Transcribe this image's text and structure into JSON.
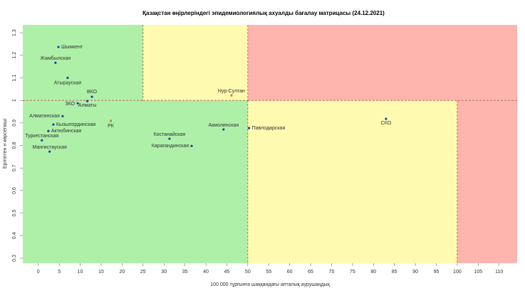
{
  "chart_data": {
    "type": "scatter",
    "title": "Қазақстан өңірлеріндегі эпидемиологиялық ахуалды бағалау матрицасы  (24.12.2021)",
    "x_label": "100 000 тұрғынға шаққандағы апталық аурушаңдық",
    "y_label": "Ерітіптен н көрсеткіші",
    "labels": [
      "Шымкент",
      "Жамбылская",
      "Атырауская",
      "ВКО",
      "ЗКО",
      "Алматы",
      "Алматинская",
      "РК",
      "Кызылординская",
      "Актюбинская",
      "Туркестанская",
      "Мангистауская",
      "Нур-Султан",
      "Акмолинская",
      "Павлодарская",
      "Костанайская",
      "Карагандинская",
      "СКО"
    ],
    "x": [
      4.8,
      4.1,
      7.0,
      12.8,
      9.4,
      11.7,
      5.8,
      17.3,
      3.6,
      2.4,
      0.85,
      2.7,
      46.1,
      44.2,
      50.3,
      31.3,
      36.6,
      83.0
    ],
    "values": [
      1.237,
      1.167,
      1.1,
      1.016,
      0.987,
      0.997,
      0.93,
      0.909,
      0.893,
      0.864,
      0.823,
      0.773,
      1.022,
      0.871,
      0.877,
      0.83,
      0.798,
      0.918
    ],
    "colors": [
      "#1f3fa0",
      "#1f3fa0",
      "#1f3fa0",
      "#1f3fa0",
      "#1f3fa0",
      "#1f3fa0",
      "#1f3fa0",
      "#d0802a",
      "#1f3fa0",
      "#1f3fa0",
      "#1f3fa0",
      "#1f3fa0",
      "#d0802a",
      "#1f3fa0",
      "#1f3fa0",
      "#1f3fa0",
      "#1f3fa0",
      "#1f3fa0"
    ],
    "zones": [
      {
        "x": [
          null,
          25
        ],
        "y": [
          1,
          null
        ],
        "color": "#aef0a8"
      },
      {
        "x": [
          25,
          50
        ],
        "y": [
          1,
          null
        ],
        "color": "#fefaaf"
      },
      {
        "x": [
          50,
          null
        ],
        "y": [
          1,
          null
        ],
        "color": "#fdb5ae"
      },
      {
        "x": [
          null,
          50
        ],
        "y": [
          null,
          1
        ],
        "color": "#aef0a8"
      },
      {
        "x": [
          50,
          100
        ],
        "y": [
          null,
          1
        ],
        "color": "#fefaaf"
      },
      {
        "x": [
          100,
          null
        ],
        "y": [
          null,
          1
        ],
        "color": "#fdb5ae"
      }
    ],
    "xlim": [
      -3.7,
      114.3
    ],
    "ylim": [
      0.278,
      1.335
    ],
    "xticks": [
      0,
      5,
      10,
      15,
      20,
      25,
      30,
      35,
      40,
      45,
      50,
      55,
      60,
      65,
      70,
      75,
      80,
      85,
      90,
      95,
      100,
      105,
      110
    ],
    "yticks": [
      0.3,
      0.4,
      0.5,
      0.6,
      0.7,
      0.8,
      0.9,
      1.0,
      1.1,
      1.2,
      1.3
    ]
  }
}
